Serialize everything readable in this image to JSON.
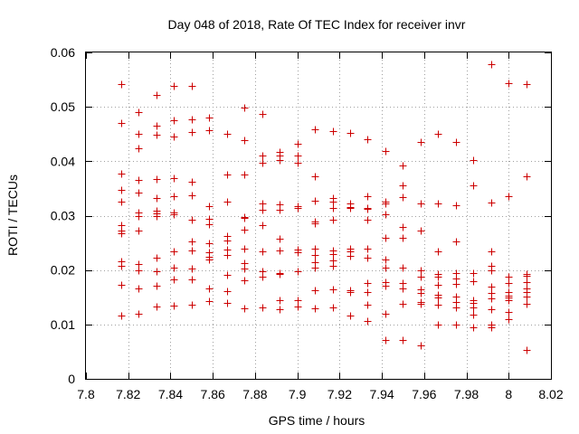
{
  "chart_data": {
    "type": "scatter",
    "title": "Day 048 of 2018, Rate Of TEC Index for receiver invr",
    "xlabel": "GPS time / hours",
    "ylabel": "ROTI / TECUs",
    "xlim": [
      7.8,
      8.02
    ],
    "ylim": [
      0,
      0.06
    ],
    "xticks": [
      7.8,
      7.82,
      7.84,
      7.86,
      7.88,
      7.9,
      7.92,
      7.94,
      7.96,
      7.98,
      8,
      8.02
    ],
    "xtick_labels": [
      "7.8",
      "7.82",
      "7.84",
      "7.86",
      "7.88",
      "7.9",
      "7.92",
      "7.94",
      "7.96",
      "7.98",
      "8",
      "8.02"
    ],
    "yticks": [
      0,
      0.01,
      0.02,
      0.03,
      0.04,
      0.05,
      0.06
    ],
    "ytick_labels": [
      "0",
      "0.01",
      "0.02",
      "0.03",
      "0.04",
      "0.05",
      "0.06"
    ],
    "grid": true,
    "marker": "+",
    "marker_color": "#cc0000",
    "series": [
      {
        "name": "ROTI",
        "points": [
          [
            7.8167,
            0.0541
          ],
          [
            7.8167,
            0.0471
          ],
          [
            7.8167,
            0.0378
          ],
          [
            7.8167,
            0.0348
          ],
          [
            7.8167,
            0.0325
          ],
          [
            7.8167,
            0.0283
          ],
          [
            7.8167,
            0.0272
          ],
          [
            7.8167,
            0.0268
          ],
          [
            7.8167,
            0.0216
          ],
          [
            7.8167,
            0.0208
          ],
          [
            7.8167,
            0.0173
          ],
          [
            7.8167,
            0.0117
          ],
          [
            7.825,
            0.0491
          ],
          [
            7.825,
            0.0451
          ],
          [
            7.825,
            0.0424
          ],
          [
            7.825,
            0.0366
          ],
          [
            7.825,
            0.0342
          ],
          [
            7.825,
            0.0306
          ],
          [
            7.825,
            0.0299
          ],
          [
            7.825,
            0.0273
          ],
          [
            7.825,
            0.0211
          ],
          [
            7.825,
            0.0199
          ],
          [
            7.825,
            0.0167
          ],
          [
            7.825,
            0.0119
          ],
          [
            7.8333,
            0.0522
          ],
          [
            7.8333,
            0.0466
          ],
          [
            7.8333,
            0.0448
          ],
          [
            7.8333,
            0.0367
          ],
          [
            7.8333,
            0.0332
          ],
          [
            7.8333,
            0.0309
          ],
          [
            7.8333,
            0.0304
          ],
          [
            7.8333,
            0.0299
          ],
          [
            7.8333,
            0.0223
          ],
          [
            7.8333,
            0.0198
          ],
          [
            7.8333,
            0.0172
          ],
          [
            7.8333,
            0.0133
          ],
          [
            7.8417,
            0.0538
          ],
          [
            7.8417,
            0.0476
          ],
          [
            7.8417,
            0.0445
          ],
          [
            7.8417,
            0.0369
          ],
          [
            7.8417,
            0.0336
          ],
          [
            7.8417,
            0.0306
          ],
          [
            7.8417,
            0.0302
          ],
          [
            7.8417,
            0.0235
          ],
          [
            7.8417,
            0.0204
          ],
          [
            7.8417,
            0.0183
          ],
          [
            7.8417,
            0.0135
          ],
          [
            7.85,
            0.0538
          ],
          [
            7.85,
            0.0477
          ],
          [
            7.85,
            0.0453
          ],
          [
            7.85,
            0.0362
          ],
          [
            7.85,
            0.0337
          ],
          [
            7.85,
            0.0293
          ],
          [
            7.85,
            0.0252
          ],
          [
            7.85,
            0.0236
          ],
          [
            7.85,
            0.0203
          ],
          [
            7.85,
            0.0183
          ],
          [
            7.85,
            0.0137
          ],
          [
            7.8583,
            0.048
          ],
          [
            7.8583,
            0.0457
          ],
          [
            7.8583,
            0.0318
          ],
          [
            7.8583,
            0.0295
          ],
          [
            7.8583,
            0.0284
          ],
          [
            7.8583,
            0.025
          ],
          [
            7.8583,
            0.0232
          ],
          [
            7.8583,
            0.0225
          ],
          [
            7.8583,
            0.0219
          ],
          [
            7.8583,
            0.0166
          ],
          [
            7.8583,
            0.0143
          ],
          [
            7.8667,
            0.0451
          ],
          [
            7.8667,
            0.0376
          ],
          [
            7.8667,
            0.0326
          ],
          [
            7.8667,
            0.0262
          ],
          [
            7.8667,
            0.0255
          ],
          [
            7.8667,
            0.0237
          ],
          [
            7.8667,
            0.0227
          ],
          [
            7.8667,
            0.0191
          ],
          [
            7.8667,
            0.0162
          ],
          [
            7.8667,
            0.014
          ],
          [
            7.875,
            0.0498
          ],
          [
            7.875,
            0.0438
          ],
          [
            7.875,
            0.0376
          ],
          [
            7.875,
            0.0298
          ],
          [
            7.875,
            0.0296
          ],
          [
            7.875,
            0.0274
          ],
          [
            7.875,
            0.024
          ],
          [
            7.875,
            0.0213
          ],
          [
            7.875,
            0.0203
          ],
          [
            7.875,
            0.0181
          ],
          [
            7.875,
            0.0129
          ],
          [
            7.8833,
            0.0487
          ],
          [
            7.8833,
            0.041
          ],
          [
            7.8833,
            0.0398
          ],
          [
            7.8833,
            0.0322
          ],
          [
            7.8833,
            0.031
          ],
          [
            7.8833,
            0.0283
          ],
          [
            7.8833,
            0.0235
          ],
          [
            7.8833,
            0.0198
          ],
          [
            7.8833,
            0.0188
          ],
          [
            7.8833,
            0.0131
          ],
          [
            7.8917,
            0.0418
          ],
          [
            7.8917,
            0.041
          ],
          [
            7.8917,
            0.0403
          ],
          [
            7.8917,
            0.032
          ],
          [
            7.8917,
            0.031
          ],
          [
            7.8917,
            0.0258
          ],
          [
            7.8917,
            0.0236
          ],
          [
            7.8917,
            0.0194
          ],
          [
            7.8917,
            0.0193
          ],
          [
            7.8917,
            0.0144
          ],
          [
            7.8917,
            0.0128
          ],
          [
            7.9,
            0.0432
          ],
          [
            7.9,
            0.0411
          ],
          [
            7.9,
            0.0397
          ],
          [
            7.9,
            0.0318
          ],
          [
            7.9,
            0.0314
          ],
          [
            7.9,
            0.0238
          ],
          [
            7.9,
            0.0233
          ],
          [
            7.9,
            0.0197
          ],
          [
            7.9,
            0.0144
          ],
          [
            7.9,
            0.0133
          ],
          [
            7.9083,
            0.0458
          ],
          [
            7.9083,
            0.0373
          ],
          [
            7.9083,
            0.0327
          ],
          [
            7.9083,
            0.029
          ],
          [
            7.9083,
            0.0286
          ],
          [
            7.9083,
            0.024
          ],
          [
            7.9083,
            0.0227
          ],
          [
            7.9083,
            0.0214
          ],
          [
            7.9083,
            0.0204
          ],
          [
            7.9083,
            0.0163
          ],
          [
            7.9083,
            0.013
          ],
          [
            7.9167,
            0.0456
          ],
          [
            7.9167,
            0.0333
          ],
          [
            7.9167,
            0.0326
          ],
          [
            7.9167,
            0.0314
          ],
          [
            7.9167,
            0.0293
          ],
          [
            7.9167,
            0.0236
          ],
          [
            7.9167,
            0.0229
          ],
          [
            7.9167,
            0.0218
          ],
          [
            7.9167,
            0.0208
          ],
          [
            7.9167,
            0.0165
          ],
          [
            7.9167,
            0.0131
          ],
          [
            7.925,
            0.0452
          ],
          [
            7.925,
            0.0322
          ],
          [
            7.925,
            0.0316
          ],
          [
            7.925,
            0.0314
          ],
          [
            7.925,
            0.0239
          ],
          [
            7.925,
            0.0235
          ],
          [
            7.925,
            0.0226
          ],
          [
            7.925,
            0.0163
          ],
          [
            7.925,
            0.0159
          ],
          [
            7.925,
            0.0117
          ],
          [
            7.9333,
            0.044
          ],
          [
            7.9333,
            0.0336
          ],
          [
            7.9333,
            0.0314
          ],
          [
            7.9333,
            0.0312
          ],
          [
            7.9333,
            0.0293
          ],
          [
            7.9333,
            0.0239
          ],
          [
            7.9333,
            0.0222
          ],
          [
            7.9333,
            0.0176
          ],
          [
            7.9333,
            0.0159
          ],
          [
            7.9333,
            0.0136
          ],
          [
            7.9333,
            0.0107
          ],
          [
            7.9417,
            0.0419
          ],
          [
            7.9417,
            0.0326
          ],
          [
            7.9417,
            0.0322
          ],
          [
            7.9417,
            0.0302
          ],
          [
            7.9417,
            0.0259
          ],
          [
            7.9417,
            0.0219
          ],
          [
            7.9417,
            0.0204
          ],
          [
            7.9417,
            0.0178
          ],
          [
            7.9417,
            0.0171
          ],
          [
            7.9417,
            0.0119
          ],
          [
            7.9417,
            0.0071
          ],
          [
            7.95,
            0.0393
          ],
          [
            7.95,
            0.0355
          ],
          [
            7.95,
            0.0334
          ],
          [
            7.95,
            0.0279
          ],
          [
            7.95,
            0.026
          ],
          [
            7.95,
            0.0204
          ],
          [
            7.95,
            0.0177
          ],
          [
            7.95,
            0.0167
          ],
          [
            7.95,
            0.0138
          ],
          [
            7.95,
            0.0071
          ],
          [
            7.9583,
            0.0435
          ],
          [
            7.9583,
            0.0322
          ],
          [
            7.9583,
            0.0272
          ],
          [
            7.9583,
            0.02
          ],
          [
            7.9583,
            0.0187
          ],
          [
            7.9583,
            0.0165
          ],
          [
            7.9583,
            0.0158
          ],
          [
            7.9583,
            0.0142
          ],
          [
            7.9583,
            0.0138
          ],
          [
            7.9583,
            0.0061
          ],
          [
            7.9667,
            0.0451
          ],
          [
            7.9667,
            0.0322
          ],
          [
            7.9667,
            0.0234
          ],
          [
            7.9667,
            0.0192
          ],
          [
            7.9667,
            0.0187
          ],
          [
            7.9667,
            0.0173
          ],
          [
            7.9667,
            0.0154
          ],
          [
            7.9667,
            0.0149
          ],
          [
            7.9667,
            0.0137
          ],
          [
            7.9667,
            0.01
          ],
          [
            7.975,
            0.0436
          ],
          [
            7.975,
            0.0319
          ],
          [
            7.975,
            0.0252
          ],
          [
            7.975,
            0.0194
          ],
          [
            7.975,
            0.0185
          ],
          [
            7.975,
            0.0174
          ],
          [
            7.975,
            0.0152
          ],
          [
            7.975,
            0.0142
          ],
          [
            7.975,
            0.0131
          ],
          [
            7.975,
            0.0099
          ],
          [
            7.9833,
            0.0403
          ],
          [
            7.9833,
            0.0355
          ],
          [
            7.9833,
            0.0194
          ],
          [
            7.9833,
            0.0179
          ],
          [
            7.9833,
            0.0144
          ],
          [
            7.9833,
            0.014
          ],
          [
            7.9833,
            0.0131
          ],
          [
            7.9833,
            0.0118
          ],
          [
            7.9833,
            0.0094
          ],
          [
            7.9917,
            0.0578
          ],
          [
            7.9917,
            0.0324
          ],
          [
            7.9917,
            0.0235
          ],
          [
            7.9917,
            0.0207
          ],
          [
            7.9917,
            0.0199
          ],
          [
            7.9917,
            0.0169
          ],
          [
            7.9917,
            0.0158
          ],
          [
            7.9917,
            0.0148
          ],
          [
            7.9917,
            0.0128
          ],
          [
            7.9917,
            0.0099
          ],
          [
            7.9917,
            0.0095
          ],
          [
            8.0,
            0.0543
          ],
          [
            8.0,
            0.0336
          ],
          [
            8.0,
            0.0188
          ],
          [
            8.0,
            0.0177
          ],
          [
            8.0,
            0.016
          ],
          [
            8.0,
            0.0153
          ],
          [
            8.0,
            0.015
          ],
          [
            8.0,
            0.0144
          ],
          [
            8.0,
            0.0123
          ],
          [
            8.0,
            0.0109
          ],
          [
            8.0083,
            0.0541
          ],
          [
            8.0083,
            0.0373
          ],
          [
            8.0083,
            0.0193
          ],
          [
            8.0083,
            0.019
          ],
          [
            8.0083,
            0.0178
          ],
          [
            8.0083,
            0.0166
          ],
          [
            8.0083,
            0.0159
          ],
          [
            8.0083,
            0.0151
          ],
          [
            8.0083,
            0.0138
          ],
          [
            8.0083,
            0.0053
          ]
        ]
      }
    ]
  }
}
